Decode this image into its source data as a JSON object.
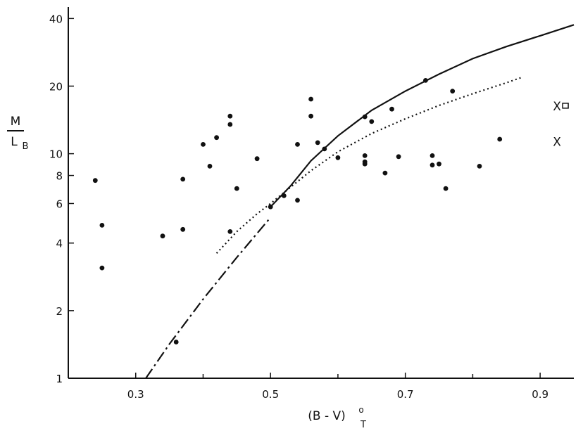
{
  "chart_data": {
    "type": "scatter",
    "x_axis": {
      "label_main": "(B - V)",
      "label_sup": "o",
      "label_sub": "T",
      "range": [
        0.2,
        0.95
      ],
      "ticks": [
        0.3,
        0.5,
        0.7,
        0.9
      ],
      "tick_labels": [
        "0.3",
        "0.5",
        "0.7",
        "0.9"
      ],
      "minor_ticks": [
        0.4,
        0.6,
        0.8
      ]
    },
    "y_axis": {
      "label_top": "M",
      "label_bottom": "L",
      "label_sub": "B",
      "scale": "log",
      "range": [
        1,
        45
      ],
      "ticks": [
        1,
        2,
        4,
        6,
        8,
        10,
        20,
        40
      ],
      "tick_labels": [
        "1",
        "2",
        "4",
        "6",
        "8",
        "10",
        "20",
        "40"
      ]
    },
    "points": [
      {
        "x": 0.24,
        "y": 7.6
      },
      {
        "x": 0.25,
        "y": 4.8
      },
      {
        "x": 0.25,
        "y": 3.1
      },
      {
        "x": 0.34,
        "y": 4.3
      },
      {
        "x": 0.36,
        "y": 1.45
      },
      {
        "x": 0.37,
        "y": 7.7
      },
      {
        "x": 0.37,
        "y": 4.6
      },
      {
        "x": 0.4,
        "y": 11.0
      },
      {
        "x": 0.41,
        "y": 8.8
      },
      {
        "x": 0.42,
        "y": 11.8
      },
      {
        "x": 0.44,
        "y": 14.7
      },
      {
        "x": 0.44,
        "y": 13.5
      },
      {
        "x": 0.44,
        "y": 4.5
      },
      {
        "x": 0.45,
        "y": 7.0
      },
      {
        "x": 0.48,
        "y": 9.5
      },
      {
        "x": 0.5,
        "y": 5.8
      },
      {
        "x": 0.52,
        "y": 6.5
      },
      {
        "x": 0.54,
        "y": 11.0
      },
      {
        "x": 0.54,
        "y": 6.2
      },
      {
        "x": 0.56,
        "y": 17.5
      },
      {
        "x": 0.56,
        "y": 14.7
      },
      {
        "x": 0.57,
        "y": 11.2
      },
      {
        "x": 0.58,
        "y": 10.5
      },
      {
        "x": 0.6,
        "y": 9.6
      },
      {
        "x": 0.64,
        "y": 14.6
      },
      {
        "x": 0.64,
        "y": 9.8
      },
      {
        "x": 0.64,
        "y": 9.2
      },
      {
        "x": 0.64,
        "y": 9.0
      },
      {
        "x": 0.65,
        "y": 13.9
      },
      {
        "x": 0.67,
        "y": 8.2
      },
      {
        "x": 0.68,
        "y": 15.8
      },
      {
        "x": 0.69,
        "y": 9.7
      },
      {
        "x": 0.73,
        "y": 21.2
      },
      {
        "x": 0.74,
        "y": 9.8
      },
      {
        "x": 0.74,
        "y": 8.9
      },
      {
        "x": 0.75,
        "y": 9.0
      },
      {
        "x": 0.76,
        "y": 7.0
      },
      {
        "x": 0.77,
        "y": 19.0
      },
      {
        "x": 0.81,
        "y": 8.8
      },
      {
        "x": 0.84,
        "y": 11.6
      }
    ],
    "curves": [
      {
        "style": "solid",
        "points": [
          [
            0.5,
            5.8
          ],
          [
            0.53,
            7.2
          ],
          [
            0.56,
            9.3
          ],
          [
            0.6,
            12.0
          ],
          [
            0.65,
            15.6
          ],
          [
            0.7,
            19.0
          ],
          [
            0.75,
            22.6
          ],
          [
            0.8,
            26.5
          ],
          [
            0.85,
            30.0
          ],
          [
            0.9,
            33.5
          ],
          [
            0.95,
            37.5
          ]
        ]
      },
      {
        "style": "dotted",
        "points": [
          [
            0.42,
            3.6
          ],
          [
            0.45,
            4.5
          ],
          [
            0.48,
            5.4
          ],
          [
            0.5,
            6.0
          ],
          [
            0.53,
            7.1
          ],
          [
            0.56,
            8.4
          ],
          [
            0.6,
            10.2
          ],
          [
            0.65,
            12.3
          ],
          [
            0.7,
            14.3
          ],
          [
            0.75,
            16.4
          ],
          [
            0.8,
            18.5
          ],
          [
            0.85,
            20.7
          ],
          [
            0.875,
            22.0
          ]
        ]
      },
      {
        "style": "dashdot",
        "points": [
          [
            0.315,
            1.0
          ],
          [
            0.35,
            1.42
          ],
          [
            0.4,
            2.25
          ],
          [
            0.45,
            3.45
          ],
          [
            0.5,
            5.2
          ]
        ]
      }
    ],
    "markers": [
      {
        "label": "X",
        "x": 0.925,
        "y": 16.3,
        "box": true
      },
      {
        "label": "X",
        "x": 0.925,
        "y": 11.3,
        "box": false
      }
    ],
    "grid": false,
    "legend": "none"
  }
}
